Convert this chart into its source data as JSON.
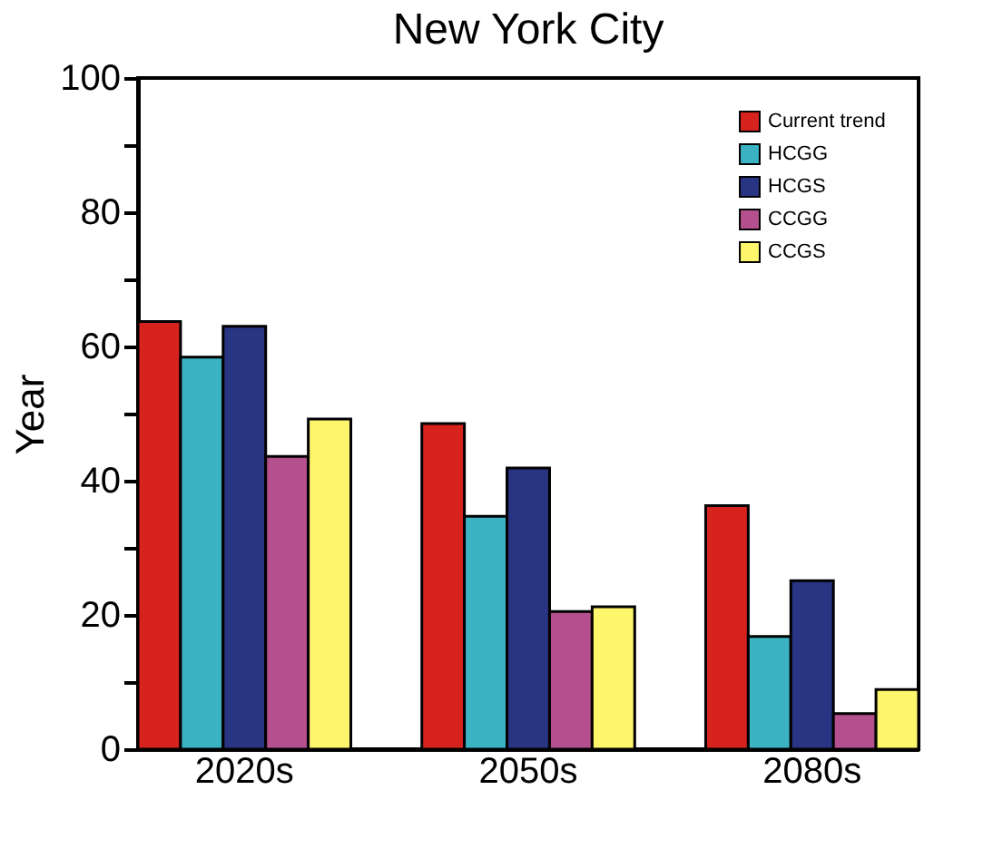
{
  "chart_data": {
    "type": "bar",
    "title": "New York City",
    "ylabel": "Year",
    "categories": [
      "2020s",
      "2050s",
      "2080s"
    ],
    "series": [
      {
        "name": "Current trend",
        "color": "#d7231e",
        "values": [
          63.7,
          48.5,
          36.3
        ]
      },
      {
        "name": "HCGG",
        "color": "#3bb3c3",
        "values": [
          58.4,
          34.7,
          16.8
        ]
      },
      {
        "name": "HCGS",
        "color": "#283583",
        "values": [
          63.0,
          41.9,
          25.1
        ]
      },
      {
        "name": "CCGG",
        "color": "#b5508f",
        "values": [
          43.6,
          20.5,
          5.3
        ]
      },
      {
        "name": "CCGS",
        "color": "#fdf56b",
        "values": [
          49.2,
          21.2,
          8.9
        ]
      }
    ],
    "ylim": [
      0,
      100
    ],
    "yticks": [
      0,
      {
        "value": 10,
        "label": null
      },
      20,
      {
        "value": 30,
        "label": null
      },
      40,
      {
        "value": 50,
        "label": null
      },
      60,
      {
        "value": 70,
        "label": null
      },
      80,
      {
        "value": 90,
        "label": null
      },
      100
    ],
    "grid": false,
    "legend": "top right"
  }
}
